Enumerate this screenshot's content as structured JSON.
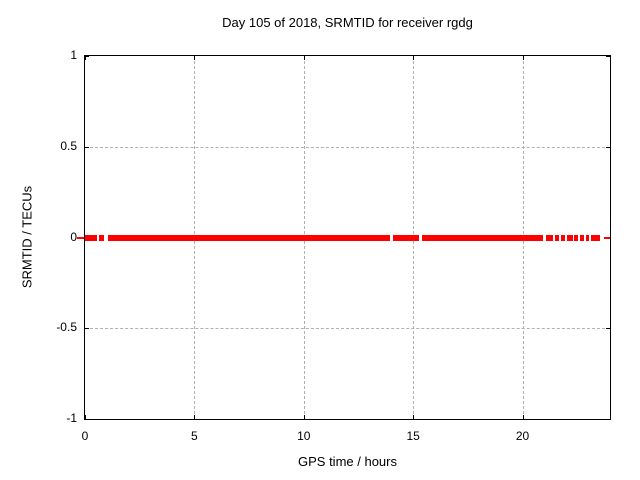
{
  "window": {
    "background": "#ffffff",
    "border_color": "#000000",
    "grid_color": "#b0b0b0",
    "text_color": "#000000"
  },
  "chart_data": {
    "type": "scatter",
    "title": "Day 105 of 2018, SRMTID for receiver rgdg",
    "xlabel": "GPS time / hours",
    "ylabel": "SRMTID / TECUs",
    "xlim": [
      0,
      24
    ],
    "ylim": [
      -1,
      1
    ],
    "xticks": [
      0,
      5,
      10,
      15,
      20
    ],
    "xtick_labels": [
      "0",
      "5",
      "10",
      "15",
      "20"
    ],
    "yticks": [
      1,
      0.5,
      0,
      -0.5,
      -1
    ],
    "ytick_labels": [
      "1",
      "0.5",
      "0",
      "-0.5",
      "-1"
    ],
    "grid": true,
    "legend": "none",
    "series": [
      {
        "name": "SRMTID",
        "color": "#ff0000",
        "y_value": 0,
        "marker": "filled-square",
        "marker_height_px": 6,
        "segments_hours": [
          [
            0.0,
            0.53
          ],
          [
            0.66,
            0.89
          ],
          [
            1.03,
            13.94
          ],
          [
            14.08,
            15.27
          ],
          [
            15.41,
            20.94
          ],
          [
            21.07,
            21.39
          ],
          [
            21.49,
            21.67
          ],
          [
            21.76,
            21.94
          ],
          [
            22.03,
            22.31
          ],
          [
            22.35,
            22.54
          ],
          [
            22.63,
            22.81
          ],
          [
            22.9,
            23.04
          ],
          [
            23.13,
            23.54
          ]
        ],
        "thin_segments_hours": [
          [
            23.73,
            24.0
          ]
        ],
        "outside_dash_hours": [
          -0.37,
          -0.05
        ]
      }
    ]
  }
}
